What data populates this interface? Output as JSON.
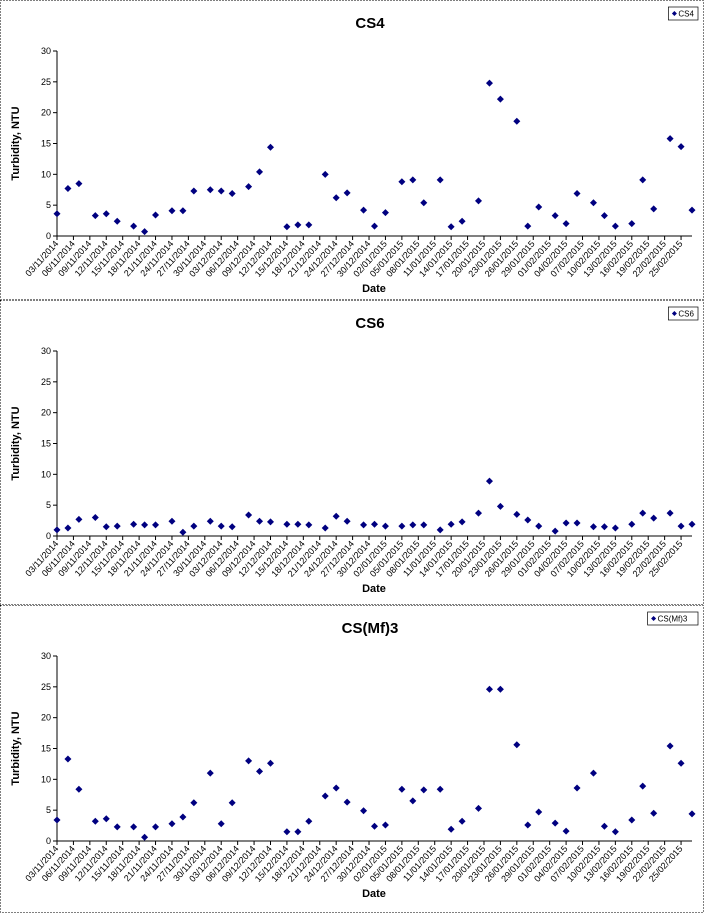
{
  "chart_data": [
    {
      "type": "scatter",
      "title": "CS4",
      "xlabel": "Date",
      "ylabel": "Turbidity, NTU",
      "x": [
        "03/11/2014",
        "05/11/2014",
        "07/11/2014",
        "10/11/2014",
        "12/11/2014",
        "14/11/2014",
        "17/11/2014",
        "19/11/2014",
        "21/11/2014",
        "24/11/2014",
        "26/11/2014",
        "28/11/2014",
        "01/12/2014",
        "03/12/2014",
        "05/12/2014",
        "08/12/2014",
        "10/12/2014",
        "12/12/2014",
        "15/12/2014",
        "17/12/2014",
        "19/12/2014",
        "22/12/2014",
        "24/12/2014",
        "26/12/2014",
        "29/12/2014",
        "31/12/2014",
        "02/01/2015",
        "05/01/2015",
        "07/01/2015",
        "09/01/2015",
        "12/01/2015",
        "14/01/2015",
        "16/01/2015",
        "19/01/2015",
        "21/01/2015",
        "23/01/2015",
        "26/01/2015",
        "28/01/2015",
        "30/01/2015",
        "02/02/2015",
        "04/02/2015",
        "06/02/2015",
        "09/02/2015",
        "11/02/2015",
        "13/02/2015",
        "16/02/2015",
        "18/02/2015",
        "20/02/2015",
        "23/02/2015",
        "25/02/2015",
        "27/02/2015"
      ],
      "series": [
        {
          "name": "CS4",
          "color": "#000080",
          "values": [
            3.6,
            7.7,
            8.5,
            3.3,
            3.6,
            2.4,
            1.6,
            0.7,
            3.4,
            4.1,
            4.1,
            7.3,
            7.5,
            7.3,
            6.9,
            8.0,
            10.4,
            14.4,
            1.5,
            1.8,
            1.8,
            10.0,
            6.2,
            7.0,
            4.2,
            1.6,
            3.8,
            8.8,
            9.1,
            5.4,
            9.1,
            1.5,
            2.4,
            5.7,
            24.8,
            22.2,
            18.6,
            1.6,
            4.7,
            3.3,
            2.0,
            6.9,
            5.4,
            3.3,
            1.6,
            2.0,
            9.1,
            4.4,
            15.8,
            14.5,
            4.2
          ]
        }
      ],
      "xlim": [
        "03/11/2014",
        "27/02/2015"
      ],
      "xticks": [
        "03/11/2014",
        "06/11/2014",
        "09/11/2014",
        "12/11/2014",
        "15/11/2014",
        "18/11/2014",
        "21/11/2014",
        "24/11/2014",
        "27/11/2014",
        "30/11/2014",
        "03/12/2014",
        "06/12/2014",
        "09/12/2014",
        "12/12/2014",
        "15/12/2014",
        "18/12/2014",
        "21/12/2014",
        "24/12/2014",
        "27/12/2014",
        "30/12/2014",
        "02/01/2015",
        "05/01/2015",
        "08/01/2015",
        "11/01/2015",
        "14/01/2015",
        "17/01/2015",
        "20/01/2015",
        "23/01/2015",
        "26/01/2015",
        "29/01/2015",
        "01/02/2015",
        "04/02/2015",
        "07/02/2015",
        "10/02/2015",
        "13/02/2015",
        "16/02/2015",
        "19/02/2015",
        "22/02/2015",
        "25/02/2015"
      ],
      "ylim": [
        0,
        30
      ],
      "yticks": [
        0,
        5,
        10,
        15,
        20,
        25,
        30
      ],
      "legend": "upper right"
    },
    {
      "type": "scatter",
      "title": "CS6",
      "xlabel": "Date",
      "ylabel": "Turbidity, NTU",
      "x": [
        "03/11/2014",
        "05/11/2014",
        "07/11/2014",
        "10/11/2014",
        "12/11/2014",
        "14/11/2014",
        "17/11/2014",
        "19/11/2014",
        "21/11/2014",
        "24/11/2014",
        "26/11/2014",
        "28/11/2014",
        "01/12/2014",
        "03/12/2014",
        "05/12/2014",
        "08/12/2014",
        "10/12/2014",
        "12/12/2014",
        "15/12/2014",
        "17/12/2014",
        "19/12/2014",
        "22/12/2014",
        "24/12/2014",
        "26/12/2014",
        "29/12/2014",
        "31/12/2014",
        "02/01/2015",
        "05/01/2015",
        "07/01/2015",
        "09/01/2015",
        "12/01/2015",
        "14/01/2015",
        "16/01/2015",
        "19/01/2015",
        "21/01/2015",
        "23/01/2015",
        "26/01/2015",
        "28/01/2015",
        "30/01/2015",
        "02/02/2015",
        "04/02/2015",
        "06/02/2015",
        "09/02/2015",
        "11/02/2015",
        "13/02/2015",
        "16/02/2015",
        "18/02/2015",
        "20/02/2015",
        "23/02/2015",
        "25/02/2015",
        "27/02/2015"
      ],
      "series": [
        {
          "name": "CS6",
          "color": "#000080",
          "values": [
            1.0,
            1.3,
            2.7,
            3.0,
            1.5,
            1.6,
            1.9,
            1.8,
            1.8,
            2.4,
            0.6,
            1.6,
            2.4,
            1.6,
            1.5,
            3.4,
            2.4,
            2.3,
            1.9,
            1.9,
            1.8,
            1.3,
            3.2,
            2.4,
            1.8,
            1.9,
            1.6,
            1.6,
            1.8,
            1.8,
            1.0,
            1.9,
            2.3,
            3.7,
            8.9,
            4.8,
            3.5,
            2.6,
            1.6,
            0.8,
            2.1,
            2.1,
            1.5,
            1.5,
            1.3,
            1.9,
            3.7,
            2.9,
            3.7,
            1.6,
            1.9
          ]
        }
      ],
      "xlim": [
        "03/11/2014",
        "27/02/2015"
      ],
      "xticks": [
        "03/11/2014",
        "06/11/2014",
        "09/11/2014",
        "12/11/2014",
        "15/11/2014",
        "18/11/2014",
        "21/11/2014",
        "24/11/2014",
        "27/11/2014",
        "30/11/2014",
        "03/12/2014",
        "06/12/2014",
        "09/12/2014",
        "12/12/2014",
        "15/12/2014",
        "18/12/2014",
        "21/12/2014",
        "24/12/2014",
        "27/12/2014",
        "30/12/2014",
        "02/01/2015",
        "05/01/2015",
        "08/01/2015",
        "11/01/2015",
        "14/01/2015",
        "17/01/2015",
        "20/01/2015",
        "23/01/2015",
        "26/01/2015",
        "29/01/2015",
        "01/02/2015",
        "04/02/2015",
        "07/02/2015",
        "10/02/2015",
        "13/02/2015",
        "16/02/2015",
        "19/02/2015",
        "22/02/2015",
        "25/02/2015"
      ],
      "ylim": [
        0,
        30
      ],
      "yticks": [
        0,
        5,
        10,
        15,
        20,
        25,
        30
      ],
      "legend": "upper right"
    },
    {
      "type": "scatter",
      "title": "CS(Mf)3",
      "xlabel": "Date",
      "ylabel": "Turbidity, NTU",
      "x": [
        "03/11/2014",
        "05/11/2014",
        "07/11/2014",
        "10/11/2014",
        "12/11/2014",
        "14/11/2014",
        "17/11/2014",
        "19/11/2014",
        "21/11/2014",
        "24/11/2014",
        "26/11/2014",
        "28/11/2014",
        "01/12/2014",
        "03/12/2014",
        "05/12/2014",
        "08/12/2014",
        "10/12/2014",
        "12/12/2014",
        "15/12/2014",
        "17/12/2014",
        "19/12/2014",
        "22/12/2014",
        "24/12/2014",
        "26/12/2014",
        "29/12/2014",
        "31/12/2014",
        "02/01/2015",
        "05/01/2015",
        "07/01/2015",
        "09/01/2015",
        "12/01/2015",
        "14/01/2015",
        "16/01/2015",
        "19/01/2015",
        "21/01/2015",
        "23/01/2015",
        "26/01/2015",
        "28/01/2015",
        "30/01/2015",
        "02/02/2015",
        "04/02/2015",
        "06/02/2015",
        "09/02/2015",
        "11/02/2015",
        "13/02/2015",
        "16/02/2015",
        "18/02/2015",
        "20/02/2015",
        "23/02/2015",
        "25/02/2015",
        "27/02/2015"
      ],
      "series": [
        {
          "name": "CS(Mf)3",
          "color": "#000080",
          "values": [
            3.4,
            13.3,
            8.4,
            3.2,
            3.6,
            2.3,
            2.3,
            0.6,
            2.3,
            2.8,
            3.9,
            6.2,
            11.0,
            2.8,
            6.2,
            13.0,
            11.3,
            12.6,
            1.5,
            1.5,
            3.2,
            7.3,
            8.6,
            6.3,
            4.9,
            2.4,
            2.6,
            8.4,
            6.5,
            8.3,
            8.4,
            1.9,
            3.2,
            5.3,
            24.6,
            24.6,
            15.6,
            2.6,
            4.7,
            2.9,
            1.6,
            8.6,
            11.0,
            2.4,
            1.5,
            3.4,
            8.9,
            4.5,
            15.4,
            12.6,
            4.4
          ]
        }
      ],
      "xlim": [
        "03/11/2014",
        "27/02/2015"
      ],
      "xticks": [
        "03/11/2014",
        "06/11/2014",
        "09/11/2014",
        "12/11/2014",
        "15/11/2014",
        "18/11/2014",
        "21/11/2014",
        "24/11/2014",
        "27/11/2014",
        "30/11/2014",
        "03/12/2014",
        "06/12/2014",
        "09/12/2014",
        "12/12/2014",
        "15/12/2014",
        "18/12/2014",
        "21/12/2014",
        "24/12/2014",
        "27/12/2014",
        "30/12/2014",
        "02/01/2015",
        "05/01/2015",
        "08/01/2015",
        "11/01/2015",
        "14/01/2015",
        "17/01/2015",
        "20/01/2015",
        "23/01/2015",
        "26/01/2015",
        "29/01/2015",
        "01/02/2015",
        "04/02/2015",
        "07/02/2015",
        "10/02/2015",
        "13/02/2015",
        "16/02/2015",
        "19/02/2015",
        "22/02/2015",
        "25/02/2015"
      ],
      "ylim": [
        0,
        30
      ],
      "yticks": [
        0,
        5,
        10,
        15,
        20,
        25,
        30
      ],
      "legend": "upper right"
    }
  ]
}
